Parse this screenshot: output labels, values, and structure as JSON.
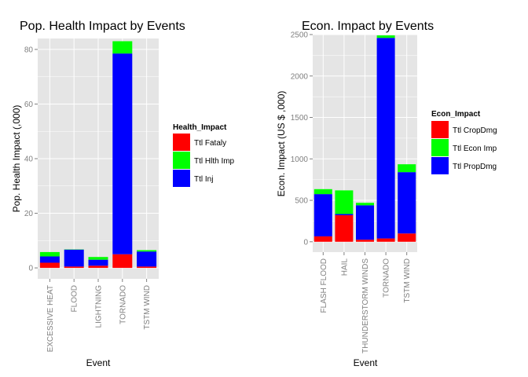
{
  "chart_data": [
    {
      "type": "bar",
      "stacked": true,
      "title": "Pop. Health Impact by Events",
      "xlabel": "Event",
      "ylabel": "Pop. Health Impact (,000)",
      "categories": [
        "EXCESSIVE HEAT",
        "FLOOD",
        "LIGHTNING",
        "TORNADO",
        "TSTM WIND"
      ],
      "yticks": [
        "0",
        "20",
        "40",
        "60",
        "80"
      ],
      "ylim": [
        -4,
        84
      ],
      "grid": true,
      "legend": {
        "title": "Health_Impact",
        "position": "right",
        "entries": [
          "Ttl Fataly",
          "Ttl Hlth Imp",
          "Ttl Inj"
        ]
      },
      "series": [
        {
          "name": "Ttl Fataly",
          "color": "#ff0000",
          "values": [
            1.9,
            0.5,
            0.8,
            5.0,
            0.5
          ]
        },
        {
          "name": "Ttl Inj",
          "color": "#0000ff",
          "values": [
            2.3,
            6.2,
            2.2,
            73.5,
            5.5
          ]
        },
        {
          "name": "Ttl Hlth Imp",
          "color": "#00ff00",
          "values": [
            1.6,
            0.1,
            1.0,
            4.5,
            0.5
          ]
        }
      ]
    },
    {
      "type": "bar",
      "stacked": true,
      "title": "Econ. Impact by Events",
      "xlabel": "Event",
      "ylabel": "Econ. Impact (US $ ,000)",
      "categories": [
        "FLASH FLOOD",
        "HAIL",
        "THUNDERSTORM WINDS",
        "TORNADO",
        "TSTM WIND"
      ],
      "yticks": [
        "0",
        "500",
        "1000",
        "1500",
        "2000",
        "2500"
      ],
      "ylim": [
        -125,
        2500
      ],
      "grid": true,
      "legend": {
        "title": "Econ_Impact",
        "position": "right",
        "entries": [
          "Ttl CropDmg",
          "Ttl Econ Imp",
          "Ttl PropDmg"
        ]
      },
      "series": [
        {
          "name": "Ttl CropDmg",
          "color": "#ff0000",
          "values": [
            65,
            320,
            25,
            40,
            100
          ]
        },
        {
          "name": "Ttl PropDmg",
          "color": "#0000ff",
          "values": [
            510,
            15,
            415,
            2420,
            740
          ]
        },
        {
          "name": "Ttl Econ Imp",
          "color": "#00ff00",
          "values": [
            60,
            285,
            30,
            30,
            95
          ]
        }
      ]
    }
  ]
}
